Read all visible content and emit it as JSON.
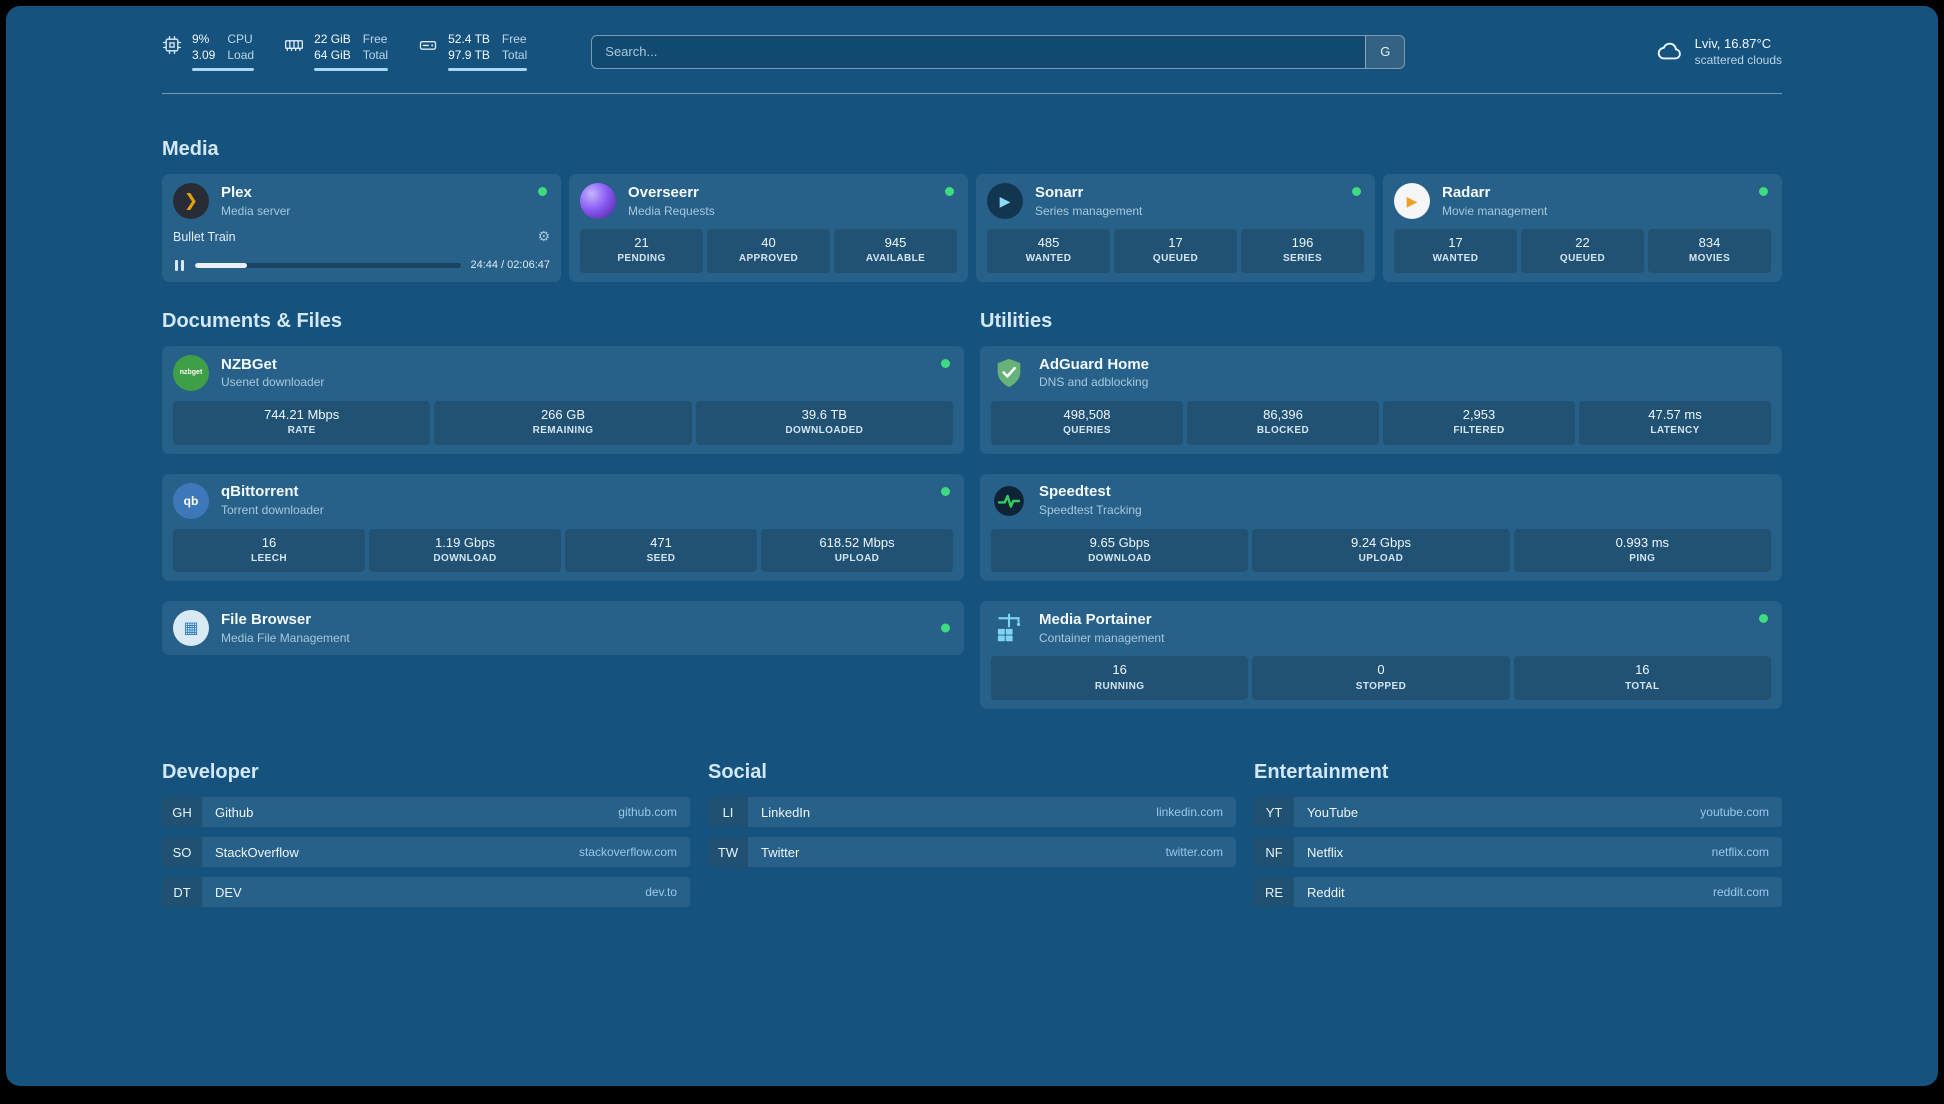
{
  "topbar": {
    "resources": [
      {
        "icon": "cpu-icon",
        "values": [
          "9%",
          "3.09"
        ],
        "labels": [
          "CPU",
          "Load"
        ]
      },
      {
        "icon": "memory-icon",
        "values": [
          "22 GiB",
          "64 GiB"
        ],
        "labels": [
          "Free",
          "Total"
        ]
      },
      {
        "icon": "disk-icon",
        "values": [
          "52.4 TB",
          "97.9 TB"
        ],
        "labels": [
          "Free",
          "Total"
        ]
      }
    ],
    "search": {
      "placeholder": "Search...",
      "button_label": "G"
    },
    "weather": {
      "line1": "Lviv, 16.87°C",
      "line2": "scattered clouds"
    }
  },
  "media": {
    "title": "Media",
    "plex": {
      "name": "Plex",
      "subtitle": "Media server",
      "now_playing": {
        "title": "Bullet Train",
        "time": "24:44 / 02:06:47",
        "progress_pct": 19.5
      }
    },
    "overseerr": {
      "name": "Overseerr",
      "subtitle": "Media Requests",
      "stats": [
        {
          "value": "21",
          "label": "PENDING"
        },
        {
          "value": "40",
          "label": "APPROVED"
        },
        {
          "value": "945",
          "label": "AVAILABLE"
        }
      ]
    },
    "sonarr": {
      "name": "Sonarr",
      "subtitle": "Series management",
      "stats": [
        {
          "value": "485",
          "label": "WANTED"
        },
        {
          "value": "17",
          "label": "QUEUED"
        },
        {
          "value": "196",
          "label": "SERIES"
        }
      ]
    },
    "radarr": {
      "name": "Radarr",
      "subtitle": "Movie management",
      "stats": [
        {
          "value": "17",
          "label": "WANTED"
        },
        {
          "value": "22",
          "label": "QUEUED"
        },
        {
          "value": "834",
          "label": "MOVIES"
        }
      ]
    }
  },
  "documents": {
    "title": "Documents & Files",
    "nzbget": {
      "name": "NZBGet",
      "subtitle": "Usenet downloader",
      "stats": [
        {
          "value": "744.21 Mbps",
          "label": "RATE"
        },
        {
          "value": "266 GB",
          "label": "REMAINING"
        },
        {
          "value": "39.6 TB",
          "label": "DOWNLOADED"
        }
      ]
    },
    "qbittorrent": {
      "name": "qBittorrent",
      "subtitle": "Torrent downloader",
      "stats": [
        {
          "value": "16",
          "label": "LEECH"
        },
        {
          "value": "1.19 Gbps",
          "label": "DOWNLOAD"
        },
        {
          "value": "471",
          "label": "SEED"
        },
        {
          "value": "618.52 Mbps",
          "label": "UPLOAD"
        }
      ]
    },
    "filebrowser": {
      "name": "File Browser",
      "subtitle": "Media File Management"
    }
  },
  "utilities": {
    "title": "Utilities",
    "adguard": {
      "name": "AdGuard Home",
      "subtitle": "DNS and adblocking",
      "stats": [
        {
          "value": "498,508",
          "label": "QUERIES"
        },
        {
          "value": "86,396",
          "label": "BLOCKED"
        },
        {
          "value": "2,953",
          "label": "FILTERED"
        },
        {
          "value": "47.57 ms",
          "label": "LATENCY"
        }
      ]
    },
    "speedtest": {
      "name": "Speedtest",
      "subtitle": "Speedtest Tracking",
      "stats": [
        {
          "value": "9.65 Gbps",
          "label": "DOWNLOAD"
        },
        {
          "value": "9.24 Gbps",
          "label": "UPLOAD"
        },
        {
          "value": "0.993 ms",
          "label": "PING"
        }
      ]
    },
    "portainer": {
      "name": "Media Portainer",
      "subtitle": "Container management",
      "stats": [
        {
          "value": "16",
          "label": "RUNNING"
        },
        {
          "value": "0",
          "label": "STOPPED"
        },
        {
          "value": "16",
          "label": "TOTAL"
        }
      ]
    }
  },
  "bookmarks": {
    "developer": {
      "title": "Developer",
      "items": [
        {
          "abbr": "GH",
          "name": "Github",
          "domain": "github.com"
        },
        {
          "abbr": "SO",
          "name": "StackOverflow",
          "domain": "stackoverflow.com"
        },
        {
          "abbr": "DT",
          "name": "DEV",
          "domain": "dev.to"
        }
      ]
    },
    "social": {
      "title": "Social",
      "items": [
        {
          "abbr": "LI",
          "name": "LinkedIn",
          "domain": "linkedin.com"
        },
        {
          "abbr": "TW",
          "name": "Twitter",
          "domain": "twitter.com"
        }
      ]
    },
    "entertainment": {
      "title": "Entertainment",
      "items": [
        {
          "abbr": "YT",
          "name": "YouTube",
          "domain": "youtube.com"
        },
        {
          "abbr": "NF",
          "name": "Netflix",
          "domain": "netflix.com"
        },
        {
          "abbr": "RE",
          "name": "Reddit",
          "domain": "reddit.com"
        }
      ]
    }
  },
  "icons": {
    "plex_glyph": "❯",
    "sonarr_glyph": "▶",
    "radarr_glyph": "▶",
    "nzbget_text": "nzbget",
    "qbittorrent_text": "qb",
    "filebrowser_glyph": "▦",
    "gear_glyph": "⚙"
  },
  "colors": {
    "background": "#15537e",
    "status_green": "#3fdc7f",
    "plex_amber": "#e5a00d",
    "sonarr_blue": "#8fd8f8",
    "radarr_orange": "#f0a029",
    "overseerr_purple": "#8b5cf6",
    "nzbget_green": "#3f9f47",
    "qbittorrent_blue": "#3d79b8",
    "adguard_green": "#67b279",
    "speedtest_pulse": "#34d05e",
    "portainer_blue": "#7fd4f5"
  }
}
